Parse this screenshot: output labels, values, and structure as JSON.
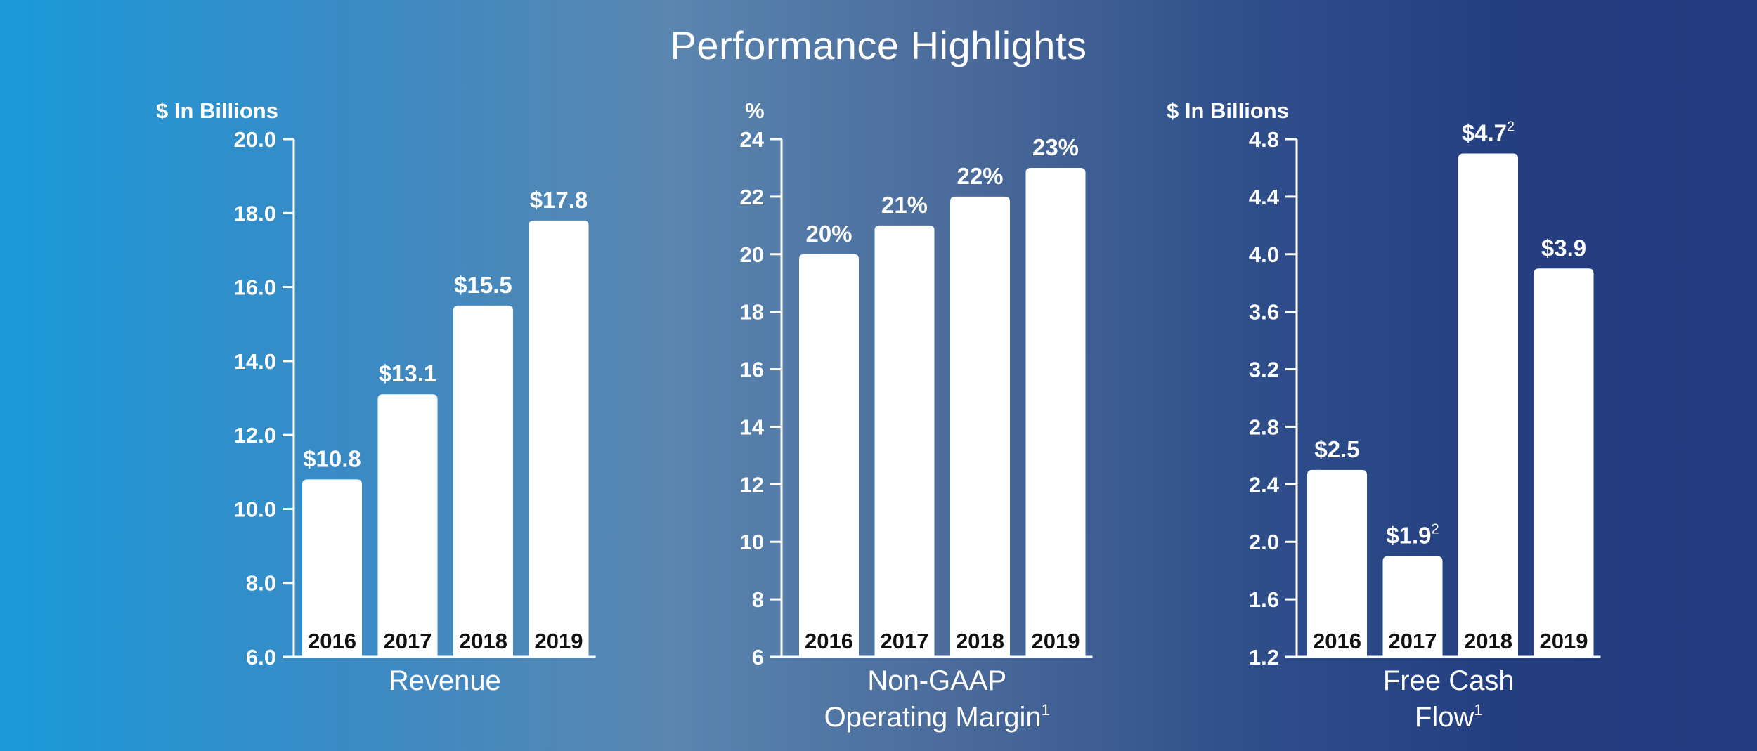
{
  "page_title": "Performance Highlights",
  "colors": {
    "bar": "#ffffff",
    "axis": "#ffffff",
    "text": "#ffffff",
    "year_label": "#111111"
  },
  "chart_data": [
    {
      "type": "bar",
      "unit_label": "$ In Billions",
      "title_lines": [
        "Revenue"
      ],
      "title_superscript": "",
      "categories": [
        "2016",
        "2017",
        "2018",
        "2019"
      ],
      "values": [
        10.8,
        13.1,
        15.5,
        17.8
      ],
      "data_labels": [
        "$10.8",
        "$13.1",
        "$15.5",
        "$17.8"
      ],
      "data_label_superscripts": [
        "",
        "",
        "",
        ""
      ],
      "ylim": [
        6.0,
        20.0
      ],
      "yticks": [
        "6.0",
        "8.0",
        "10.0",
        "12.0",
        "14.0",
        "16.0",
        "18.0",
        "20.0"
      ],
      "grid": false
    },
    {
      "type": "bar",
      "unit_label": "%",
      "title_lines": [
        "Non-GAAP",
        "Operating Margin"
      ],
      "title_superscript": "1",
      "categories": [
        "2016",
        "2017",
        "2018",
        "2019"
      ],
      "values": [
        20,
        21,
        22,
        23
      ],
      "data_labels": [
        "20%",
        "21%",
        "22%",
        "23%"
      ],
      "data_label_superscripts": [
        "",
        "",
        "",
        ""
      ],
      "ylim": [
        6,
        24
      ],
      "yticks": [
        "6",
        "8",
        "10",
        "12",
        "14",
        "16",
        "18",
        "20",
        "22",
        "24"
      ],
      "grid": false
    },
    {
      "type": "bar",
      "unit_label": "$ In Billions",
      "title_lines": [
        "Free Cash",
        "Flow"
      ],
      "title_superscript": "1",
      "categories": [
        "2016",
        "2017",
        "2018",
        "2019"
      ],
      "values": [
        2.5,
        1.9,
        4.7,
        3.9
      ],
      "data_labels": [
        "$2.5",
        "$1.9",
        "$4.7",
        "$3.9"
      ],
      "data_label_superscripts": [
        "",
        "2",
        "2",
        ""
      ],
      "ylim": [
        1.2,
        4.8
      ],
      "yticks": [
        "1.2",
        "1.6",
        "2.0",
        "2.4",
        "2.8",
        "3.2",
        "3.6",
        "4.0",
        "4.4",
        "4.8"
      ],
      "grid": false
    }
  ]
}
